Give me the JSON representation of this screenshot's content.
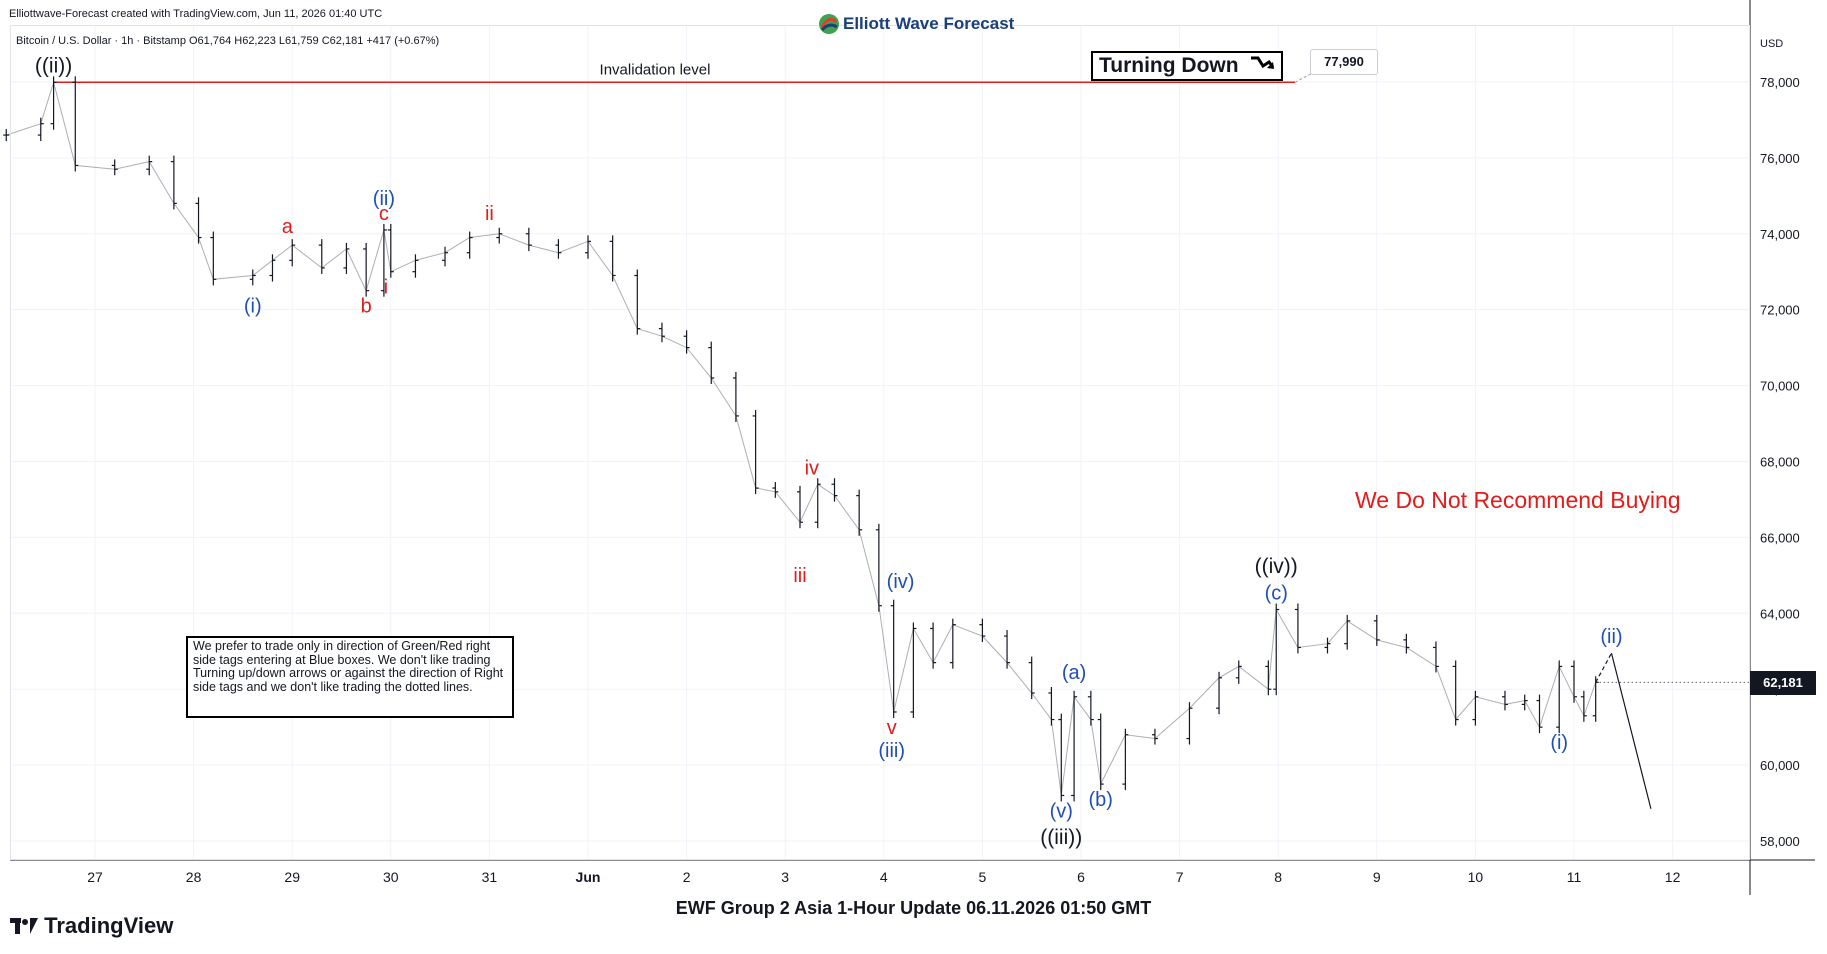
{
  "header": {
    "credit": "Elliottwave-Forecast created with TradingView.com, Jun 11, 2026 01:40 UTC",
    "brand": "Elliott Wave Forecast",
    "symbol_line": "Bitcoin / U.S. Dollar · 1h · Bitstamp  O61,764  H62,223  L61,759  C62,181  +417 (+0.67%)"
  },
  "footer": {
    "title": "EWF Group 2 Asia 1-Hour Update 06.11.2026 01:50 GMT",
    "platform": "TradingView"
  },
  "annotations": {
    "invalidation_label": "Invalidation level",
    "invalidation_price_label": "77,990",
    "turning_label": "Turning Down",
    "current_price_label": "62,181",
    "warning": "We Do Not Recommend Buying",
    "notice": "We prefer to trade only in direction of Green/Red right side tags entering at Blue boxes. We don't like trading Turning up/down arrows or against the direction of Right side tags and we don't like trading the dotted lines."
  },
  "colors": {
    "candle": "#131722",
    "invalidation": "#e21b1b",
    "minor_label": "#e21b1b",
    "intermediate_label": "#1f4fb3",
    "major_label": "#131722",
    "grid": "#f0f3fa"
  },
  "chart_data": {
    "type": "line",
    "currency": "USD",
    "ylim": [
      57500,
      79500
    ],
    "y_ticks": [
      58000,
      60000,
      62000,
      64000,
      66000,
      68000,
      70000,
      72000,
      74000,
      76000,
      78000
    ],
    "y_tick_labels": [
      "58,000",
      "60,000",
      "62,000",
      "64,000",
      "66,000",
      "68,000",
      "70,000",
      "72,000",
      "74,000",
      "76,000",
      "78,000"
    ],
    "x_labels": [
      "27",
      "28",
      "29",
      "30",
      "31",
      "Jun",
      "2",
      "3",
      "4",
      "5",
      "6",
      "7",
      "8",
      "9",
      "10",
      "11",
      "12"
    ],
    "x_positions": [
      0,
      1,
      2,
      3,
      4,
      5,
      6,
      7,
      8,
      9,
      10,
      11,
      12,
      13,
      14,
      15,
      16
    ],
    "invalidation_level": 77990,
    "current_price": 62181,
    "price_path": [
      {
        "x": -0.9,
        "y": 76600
      },
      {
        "x": -0.55,
        "y": 76900
      },
      {
        "x": -0.42,
        "y": 77990
      },
      {
        "x": -0.2,
        "y": 75800
      },
      {
        "x": 0.2,
        "y": 75700
      },
      {
        "x": 0.55,
        "y": 75900
      },
      {
        "x": 0.8,
        "y": 74800
      },
      {
        "x": 1.05,
        "y": 73900
      },
      {
        "x": 1.2,
        "y": 72800
      },
      {
        "x": 1.6,
        "y": 72900
      },
      {
        "x": 1.8,
        "y": 73300
      },
      {
        "x": 2.0,
        "y": 73700
      },
      {
        "x": 2.3,
        "y": 73100
      },
      {
        "x": 2.55,
        "y": 73600
      },
      {
        "x": 2.75,
        "y": 72500
      },
      {
        "x": 2.93,
        "y": 74100
      },
      {
        "x": 3.0,
        "y": 73000
      },
      {
        "x": 3.25,
        "y": 73300
      },
      {
        "x": 3.55,
        "y": 73500
      },
      {
        "x": 3.8,
        "y": 73900
      },
      {
        "x": 4.1,
        "y": 74000
      },
      {
        "x": 4.4,
        "y": 73700
      },
      {
        "x": 4.7,
        "y": 73500
      },
      {
        "x": 5.0,
        "y": 73800
      },
      {
        "x": 5.25,
        "y": 72900
      },
      {
        "x": 5.5,
        "y": 71500
      },
      {
        "x": 5.75,
        "y": 71300
      },
      {
        "x": 6.0,
        "y": 71000
      },
      {
        "x": 6.25,
        "y": 70200
      },
      {
        "x": 6.5,
        "y": 69200
      },
      {
        "x": 6.7,
        "y": 67300
      },
      {
        "x": 6.9,
        "y": 67200
      },
      {
        "x": 7.15,
        "y": 66400
      },
      {
        "x": 7.33,
        "y": 67400
      },
      {
        "x": 7.5,
        "y": 67100
      },
      {
        "x": 7.75,
        "y": 66200
      },
      {
        "x": 7.95,
        "y": 64200
      },
      {
        "x": 8.1,
        "y": 61400
      },
      {
        "x": 8.3,
        "y": 63600
      },
      {
        "x": 8.5,
        "y": 62700
      },
      {
        "x": 8.7,
        "y": 63700
      },
      {
        "x": 9.0,
        "y": 63400
      },
      {
        "x": 9.25,
        "y": 62700
      },
      {
        "x": 9.5,
        "y": 61900
      },
      {
        "x": 9.7,
        "y": 61200
      },
      {
        "x": 9.8,
        "y": 59200
      },
      {
        "x": 9.93,
        "y": 61800
      },
      {
        "x": 10.1,
        "y": 61200
      },
      {
        "x": 10.2,
        "y": 59500
      },
      {
        "x": 10.45,
        "y": 60800
      },
      {
        "x": 10.75,
        "y": 60700
      },
      {
        "x": 11.1,
        "y": 61500
      },
      {
        "x": 11.4,
        "y": 62300
      },
      {
        "x": 11.6,
        "y": 62600
      },
      {
        "x": 11.9,
        "y": 62000
      },
      {
        "x": 11.98,
        "y": 64100
      },
      {
        "x": 12.2,
        "y": 63100
      },
      {
        "x": 12.5,
        "y": 63200
      },
      {
        "x": 12.7,
        "y": 63800
      },
      {
        "x": 13.0,
        "y": 63300
      },
      {
        "x": 13.3,
        "y": 63100
      },
      {
        "x": 13.6,
        "y": 62600
      },
      {
        "x": 13.8,
        "y": 61200
      },
      {
        "x": 14.0,
        "y": 61800
      },
      {
        "x": 14.3,
        "y": 61600
      },
      {
        "x": 14.5,
        "y": 61700
      },
      {
        "x": 14.65,
        "y": 61000
      },
      {
        "x": 14.85,
        "y": 62600
      },
      {
        "x": 15.0,
        "y": 61800
      },
      {
        "x": 15.1,
        "y": 61300
      },
      {
        "x": 15.22,
        "y": 62181
      }
    ],
    "projection": {
      "dashed": [
        {
          "x": 15.22,
          "y": 62181
        },
        {
          "x": 15.38,
          "y": 62950
        }
      ],
      "solid": [
        {
          "x": 15.38,
          "y": 62950
        },
        {
          "x": 15.78,
          "y": 58850
        }
      ]
    },
    "wave_labels": [
      {
        "text": "((ii))",
        "x": -0.42,
        "y": 77990,
        "degree": "major",
        "place": "above"
      },
      {
        "text": "(i)",
        "x": 1.6,
        "y": 72500,
        "degree": "intermediate",
        "place": "below"
      },
      {
        "text": "a",
        "x": 1.95,
        "y": 73750,
        "degree": "minor",
        "place": "above"
      },
      {
        "text": "b",
        "x": 2.75,
        "y": 72500,
        "degree": "minor",
        "place": "below"
      },
      {
        "text": "c",
        "x": 2.93,
        "y": 74100,
        "degree": "minor",
        "place": "above"
      },
      {
        "text": "(ii)",
        "x": 2.93,
        "y": 74500,
        "degree": "intermediate",
        "place": "above"
      },
      {
        "text": "i",
        "x": 2.95,
        "y": 73000,
        "degree": "minor",
        "place": "below"
      },
      {
        "text": "ii",
        "x": 4.0,
        "y": 74100,
        "degree": "minor",
        "place": "above"
      },
      {
        "text": "iii",
        "x": 7.15,
        "y": 65400,
        "degree": "minor",
        "place": "below"
      },
      {
        "text": "iv",
        "x": 7.27,
        "y": 67400,
        "degree": "minor",
        "place": "above"
      },
      {
        "text": "(iv)",
        "x": 8.17,
        "y": 64400,
        "degree": "intermediate",
        "place": "above"
      },
      {
        "text": "v",
        "x": 8.08,
        "y": 61400,
        "degree": "minor",
        "place": "below"
      },
      {
        "text": "(iii)",
        "x": 8.08,
        "y": 60800,
        "degree": "intermediate",
        "place": "below"
      },
      {
        "text": "(a)",
        "x": 9.93,
        "y": 62000,
        "degree": "intermediate",
        "place": "above"
      },
      {
        "text": "(v)",
        "x": 9.8,
        "y": 59200,
        "degree": "intermediate",
        "place": "below"
      },
      {
        "text": "((iii))",
        "x": 9.8,
        "y": 58500,
        "degree": "major",
        "place": "below"
      },
      {
        "text": "(b)",
        "x": 10.2,
        "y": 59500,
        "degree": "intermediate",
        "place": "below"
      },
      {
        "text": "((iv))",
        "x": 11.98,
        "y": 64800,
        "degree": "major",
        "place": "above"
      },
      {
        "text": "(c)",
        "x": 11.98,
        "y": 64100,
        "degree": "intermediate",
        "place": "above"
      },
      {
        "text": "(i)",
        "x": 14.85,
        "y": 61000,
        "degree": "intermediate",
        "place": "below"
      },
      {
        "text": "(ii)",
        "x": 15.38,
        "y": 62950,
        "degree": "intermediate",
        "place": "above"
      }
    ]
  }
}
